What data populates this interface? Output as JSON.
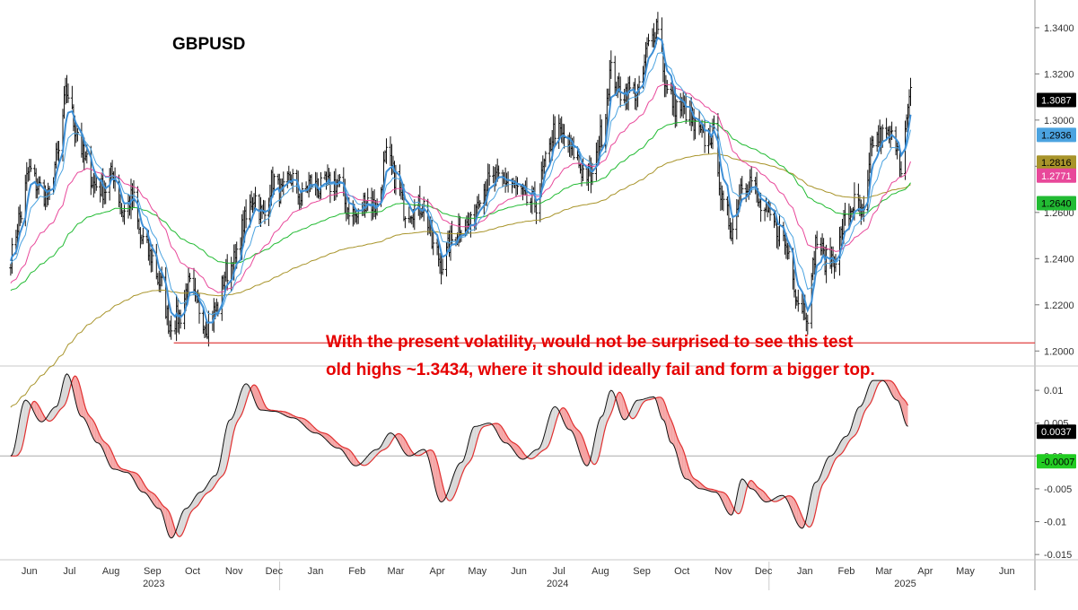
{
  "chart_data": [
    {
      "type": "line",
      "title": "GBPUSD",
      "annotation_lines": [
        "With the present volatility, would not be surprised to see this test",
        "old highs ~1.3434, where it should ideally fail and form a bigger top."
      ],
      "yticks": [
        "1.3400",
        "1.3200",
        "1.3000",
        "1.2800",
        "1.2600",
        "1.2400",
        "1.2200",
        "1.2000"
      ],
      "ylim": [
        1.1935,
        1.352
      ],
      "support_level": 1.2035,
      "ohlc_anchors": [
        [
          "2023-06-01",
          1.241
        ],
        [
          "2023-06-08",
          1.258
        ],
        [
          "2023-06-15",
          1.278
        ],
        [
          "2023-06-22",
          1.271
        ],
        [
          "2023-06-29",
          1.266
        ],
        [
          "2023-07-06",
          1.284
        ],
        [
          "2023-07-13",
          1.312
        ],
        [
          "2023-07-20",
          1.296
        ],
        [
          "2023-07-27",
          1.282
        ],
        [
          "2023-08-03",
          1.272
        ],
        [
          "2023-08-10",
          1.27
        ],
        [
          "2023-08-17",
          1.277
        ],
        [
          "2023-08-24",
          1.26
        ],
        [
          "2023-08-31",
          1.266
        ],
        [
          "2023-09-07",
          1.248
        ],
        [
          "2023-09-14",
          1.241
        ],
        [
          "2023-09-21",
          1.229
        ],
        [
          "2023-09-28",
          1.212
        ],
        [
          "2023-10-05",
          1.215
        ],
        [
          "2023-10-12",
          1.228
        ],
        [
          "2023-10-19",
          1.219
        ],
        [
          "2023-10-26",
          1.211
        ],
        [
          "2023-11-02",
          1.218
        ],
        [
          "2023-11-09",
          1.234
        ],
        [
          "2023-11-16",
          1.239
        ],
        [
          "2023-11-23",
          1.256
        ],
        [
          "2023-11-30",
          1.267
        ],
        [
          "2023-12-07",
          1.258
        ],
        [
          "2023-12-14",
          1.274
        ],
        [
          "2023-12-21",
          1.268
        ],
        [
          "2023-12-28",
          1.275
        ],
        [
          "2024-01-04",
          1.266
        ],
        [
          "2024-01-11",
          1.273
        ],
        [
          "2024-01-18",
          1.27
        ],
        [
          "2024-01-25",
          1.272
        ],
        [
          "2024-02-01",
          1.273
        ],
        [
          "2024-02-08",
          1.262
        ],
        [
          "2024-02-15",
          1.258
        ],
        [
          "2024-02-22",
          1.266
        ],
        [
          "2024-03-01",
          1.262
        ],
        [
          "2024-03-08",
          1.284
        ],
        [
          "2024-03-15",
          1.275
        ],
        [
          "2024-03-22",
          1.261
        ],
        [
          "2024-03-29",
          1.262
        ],
        [
          "2024-04-05",
          1.263
        ],
        [
          "2024-04-12",
          1.245
        ],
        [
          "2024-04-19",
          1.238
        ],
        [
          "2024-04-26",
          1.248
        ],
        [
          "2024-05-03",
          1.255
        ],
        [
          "2024-05-10",
          1.254
        ],
        [
          "2024-05-17",
          1.269
        ],
        [
          "2024-05-24",
          1.273
        ],
        [
          "2024-05-31",
          1.274
        ],
        [
          "2024-06-07",
          1.274
        ],
        [
          "2024-06-14",
          1.27
        ],
        [
          "2024-06-21",
          1.265
        ],
        [
          "2024-06-28",
          1.264
        ],
        [
          "2024-07-05",
          1.281
        ],
        [
          "2024-07-12",
          1.296
        ],
        [
          "2024-07-19",
          1.292
        ],
        [
          "2024-07-26",
          1.286
        ],
        [
          "2024-08-02",
          1.278
        ],
        [
          "2024-08-09",
          1.275
        ],
        [
          "2024-08-16",
          1.294
        ],
        [
          "2024-08-23",
          1.321
        ],
        [
          "2024-08-30",
          1.312
        ],
        [
          "2024-09-06",
          1.313
        ],
        [
          "2024-09-13",
          1.312
        ],
        [
          "2024-09-20",
          1.332
        ],
        [
          "2024-09-27",
          1.342
        ],
        [
          "2024-10-04",
          1.312
        ],
        [
          "2024-10-11",
          1.306
        ],
        [
          "2024-10-18",
          1.304
        ],
        [
          "2024-10-25",
          1.296
        ],
        [
          "2024-11-01",
          1.292
        ],
        [
          "2024-11-08",
          1.294
        ],
        [
          "2024-11-15",
          1.262
        ],
        [
          "2024-11-22",
          1.253
        ],
        [
          "2024-11-29",
          1.273
        ],
        [
          "2024-12-06",
          1.274
        ],
        [
          "2024-12-13",
          1.262
        ],
        [
          "2024-12-20",
          1.257
        ],
        [
          "2024-12-27",
          1.252
        ],
        [
          "2025-01-03",
          1.243
        ],
        [
          "2025-01-10",
          1.222
        ],
        [
          "2025-01-17",
          1.217
        ],
        [
          "2025-01-24",
          1.248
        ],
        [
          "2025-01-31",
          1.239
        ],
        [
          "2025-02-07",
          1.241
        ],
        [
          "2025-02-14",
          1.256
        ],
        [
          "2025-02-21",
          1.264
        ],
        [
          "2025-02-28",
          1.258
        ],
        [
          "2025-03-07",
          1.291
        ],
        [
          "2025-03-14",
          1.293
        ],
        [
          "2025-03-21",
          1.292
        ],
        [
          "2025-03-26",
          1.291
        ],
        [
          "2025-03-28",
          1.276
        ],
        [
          "2025-04-02",
          1.302
        ],
        [
          "2025-04-04",
          1.311
        ]
      ],
      "series": [
        {
          "label": "1.3087",
          "color": "#000000",
          "text_color": "#ffffff",
          "last": 1.3087
        },
        {
          "label": "1.2936",
          "color": "#4ba3e0",
          "text_color": "#000000",
          "last": 1.2936
        },
        {
          "label": "1.2816",
          "color": "#a8942a",
          "text_color": "#000000",
          "last": 1.2816
        },
        {
          "label": "1.2771",
          "color": "#e8489a",
          "text_color": "#ffffff",
          "last": 1.2771
        },
        {
          "label": "1.2640",
          "color": "#22bb33",
          "text_color": "#000000",
          "last": 1.264
        }
      ]
    },
    {
      "type": "line",
      "yticks": [
        "0.01",
        "0.005",
        "0.00",
        "-0.005",
        "-0.01",
        "-0.015"
      ],
      "ylim": [
        -0.0158,
        0.0137
      ],
      "anchors": [
        [
          "2023-06-01",
          0.0
        ],
        [
          "2023-06-12",
          0.0085
        ],
        [
          "2023-06-24",
          0.0052
        ],
        [
          "2023-07-05",
          0.0075
        ],
        [
          "2023-07-13",
          0.0125
        ],
        [
          "2023-07-24",
          0.006
        ],
        [
          "2023-08-05",
          0.002
        ],
        [
          "2023-08-17",
          -0.002
        ],
        [
          "2023-08-27",
          -0.0025
        ],
        [
          "2023-09-08",
          -0.0055
        ],
        [
          "2023-09-20",
          -0.008
        ],
        [
          "2023-09-29",
          -0.0125
        ],
        [
          "2023-10-10",
          -0.008
        ],
        [
          "2023-10-21",
          -0.0055
        ],
        [
          "2023-11-01",
          -0.003
        ],
        [
          "2023-11-12",
          0.0055
        ],
        [
          "2023-11-24",
          0.011
        ],
        [
          "2023-12-05",
          0.007
        ],
        [
          "2023-12-15",
          0.0068
        ],
        [
          "2023-12-29",
          0.0058
        ],
        [
          "2024-01-15",
          0.0035
        ],
        [
          "2024-02-01",
          0.0012
        ],
        [
          "2024-02-14",
          -0.0015
        ],
        [
          "2024-03-01",
          0.001
        ],
        [
          "2024-03-11",
          0.0035
        ],
        [
          "2024-03-25",
          0.0
        ],
        [
          "2024-04-05",
          0.001
        ],
        [
          "2024-04-18",
          -0.007
        ],
        [
          "2024-05-03",
          -0.001
        ],
        [
          "2024-05-13",
          0.0045
        ],
        [
          "2024-05-24",
          0.005
        ],
        [
          "2024-06-05",
          0.002
        ],
        [
          "2024-06-18",
          -0.0005
        ],
        [
          "2024-06-29",
          0.001
        ],
        [
          "2024-07-12",
          0.0075
        ],
        [
          "2024-07-23",
          0.004
        ],
        [
          "2024-08-05",
          -0.0015
        ],
        [
          "2024-08-16",
          0.006
        ],
        [
          "2024-08-23",
          0.01
        ],
        [
          "2024-09-02",
          0.0055
        ],
        [
          "2024-09-12",
          0.0085
        ],
        [
          "2024-09-24",
          0.009
        ],
        [
          "2024-10-01",
          0.0055
        ],
        [
          "2024-10-07",
          0.002
        ],
        [
          "2024-10-18",
          -0.0035
        ],
        [
          "2024-10-29",
          -0.005
        ],
        [
          "2024-11-09",
          -0.0055
        ],
        [
          "2024-11-21",
          -0.009
        ],
        [
          "2024-11-29",
          -0.0035
        ],
        [
          "2024-12-06",
          -0.005
        ],
        [
          "2024-12-17",
          -0.007
        ],
        [
          "2024-12-29",
          -0.006
        ],
        [
          "2025-01-13",
          -0.011
        ],
        [
          "2025-01-23",
          -0.004
        ],
        [
          "2025-02-03",
          0.0
        ],
        [
          "2025-02-15",
          0.003
        ],
        [
          "2025-02-25",
          0.0075
        ],
        [
          "2025-03-07",
          0.0115
        ],
        [
          "2025-03-14",
          0.0115
        ],
        [
          "2025-03-25",
          0.0085
        ],
        [
          "2025-04-02",
          0.0045
        ]
      ],
      "series": [
        {
          "label": "0.0037",
          "color": "#000000",
          "text_color": "#ffffff",
          "last": 0.0037
        },
        {
          "label": "-0.0007",
          "color": "#22cc22",
          "text_color": "#000000",
          "last": -0.0007
        }
      ]
    }
  ],
  "xaxis": {
    "months": [
      "Jun",
      "Jul",
      "Aug",
      "Sep",
      "Oct",
      "Nov",
      "Dec",
      "Jan",
      "Feb",
      "Mar",
      "Apr",
      "May",
      "Jun",
      "Jul",
      "Aug",
      "Sep",
      "Oct",
      "Nov",
      "Dec",
      "Jan",
      "Feb",
      "Mar",
      "Apr",
      "May",
      "Jun"
    ],
    "month_dates": [
      "2023-06-15",
      "2023-07-15",
      "2023-08-15",
      "2023-09-15",
      "2023-10-15",
      "2023-11-15",
      "2023-12-15",
      "2024-01-15",
      "2024-02-15",
      "2024-03-15",
      "2024-04-15",
      "2024-05-15",
      "2024-06-15",
      "2024-07-15",
      "2024-08-15",
      "2024-09-15",
      "2024-10-15",
      "2024-11-15",
      "2024-12-15",
      "2025-01-15",
      "2025-02-15",
      "2025-03-15",
      "2025-04-15",
      "2025-05-15",
      "2025-06-15"
    ],
    "years": [
      "2023",
      "2024",
      "2025"
    ],
    "year_dates": [
      "2023-09-16",
      "2024-07-14",
      "2025-03-31"
    ],
    "range": [
      "2023-05-24",
      "2025-07-06"
    ]
  }
}
